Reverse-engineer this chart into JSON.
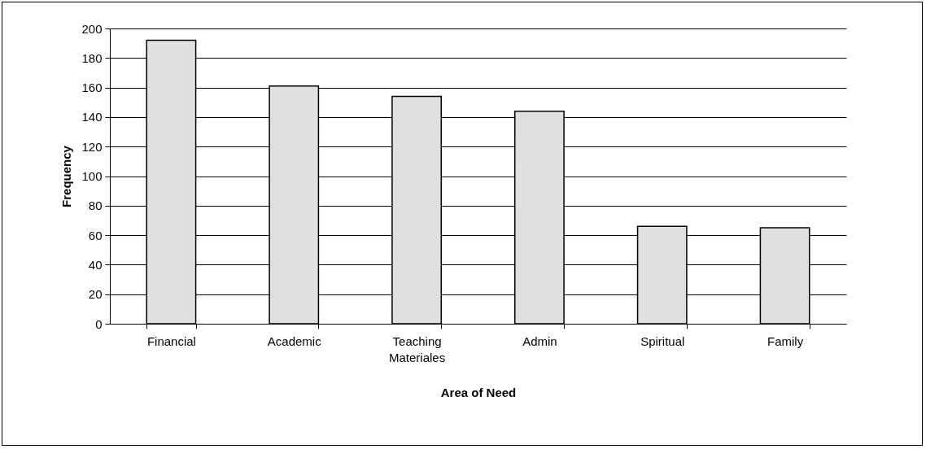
{
  "chart_data": {
    "type": "bar",
    "xlabel": "Area of Need",
    "ylabel": "Frequency",
    "categories": [
      "Financial",
      "Academic",
      "Teaching Materiales",
      "Admin",
      "Spiritual",
      "Family"
    ],
    "values": [
      192,
      161,
      154,
      144,
      66,
      65
    ],
    "color": "#e0e0e0",
    "ylim": [
      0,
      200
    ],
    "yticks": [
      0,
      20,
      40,
      60,
      80,
      100,
      120,
      140,
      160,
      180,
      200
    ],
    "grid": "y"
  }
}
